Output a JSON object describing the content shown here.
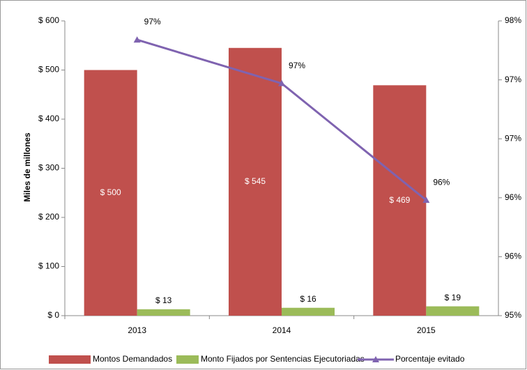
{
  "chart_data": {
    "type": "bar",
    "y_axis_label": "Miles de millones",
    "categories": [
      "2013",
      "2014",
      "2015"
    ],
    "series": [
      {
        "name": "Montos Demandados",
        "color": "#c0504d",
        "type": "bar",
        "values": [
          500,
          545,
          469
        ],
        "value_labels": [
          "$ 500",
          "$ 545",
          "$ 469"
        ]
      },
      {
        "name": "Monto Fijados por Sentencias Ejecutoriadas",
        "color": "#9bbb59",
        "type": "bar",
        "values": [
          13,
          16,
          19
        ],
        "value_labels": [
          "$ 13",
          "$ 16",
          "$ 19"
        ]
      },
      {
        "name": "Porcentaje evitado",
        "color": "#7f63b0",
        "type": "line",
        "axis": "y2",
        "values": [
          97.34,
          96.97,
          95.98
        ],
        "value_labels": [
          "97%",
          "97%",
          "96%"
        ]
      }
    ],
    "ylim": [
      0,
      600
    ],
    "yticks": [
      {
        "value": 0,
        "label": "$ 0"
      },
      {
        "value": 100,
        "label": "$ 100"
      },
      {
        "value": 200,
        "label": "$ 200"
      },
      {
        "value": 300,
        "label": "$ 300"
      },
      {
        "value": 400,
        "label": "$ 400"
      },
      {
        "value": 500,
        "label": "$ 500"
      },
      {
        "value": 600,
        "label": "$ 600"
      }
    ],
    "y2lim": [
      95,
      97.5
    ],
    "y2ticks": [
      {
        "value": 95,
        "label": "95%"
      },
      {
        "value": 95.5,
        "label": "96%"
      },
      {
        "value": 96,
        "label": "96%"
      },
      {
        "value": 96.5,
        "label": "97%"
      },
      {
        "value": 97,
        "label": "97%"
      },
      {
        "value": 97.5,
        "label": "98%"
      }
    ],
    "legend": "bottom",
    "grid": false
  }
}
